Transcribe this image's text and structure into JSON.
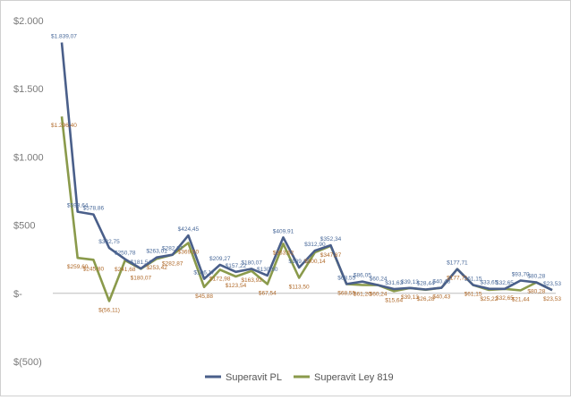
{
  "chart_data": {
    "type": "line",
    "title": "",
    "xlabel": "",
    "ylabel": "",
    "ylim": [
      -500,
      2000
    ],
    "yticks": [
      {
        "value": 2000,
        "label": "$2.000"
      },
      {
        "value": 1500,
        "label": "$1.500"
      },
      {
        "value": 1000,
        "label": "$1.000"
      },
      {
        "value": 500,
        "label": "$500"
      },
      {
        "value": 0,
        "label": "$-"
      },
      {
        "value": -500,
        "label": "$(500)"
      }
    ],
    "grid": false,
    "legend_position": "bottom",
    "series": [
      {
        "name": "Superavit PL",
        "color": "#4a5f8a",
        "values": [
          1839.07,
          598.64,
          578.86,
          332.75,
          250.78,
          181.54,
          263.01,
          282.87,
          424.45,
          106.17,
          209.27,
          157.22,
          180.07,
          130.6,
          409.91,
          189.15,
          312.9,
          352.34,
          68.55,
          86.05,
          60.24,
          31.63,
          39.13,
          28.44,
          40.43,
          177.71,
          61.15,
          33.65,
          32.65,
          93.7,
          80.28,
          23.53
        ],
        "labels": [
          "$1.839,07",
          "$598,64",
          "$578,86",
          "$332,75",
          "$250,78",
          "$181,54",
          "$263,01",
          "$282,87",
          "$424,45",
          "$106,17",
          "$209,27",
          "$157,22",
          "$180,07",
          "$130,60",
          "$409,91",
          "$189,15",
          "$312,90",
          "$352,34",
          "$68,55",
          "$86,05",
          "$60,24",
          "$31,63",
          "$39,13",
          "$28,44",
          "$40,43",
          "$177,71",
          "$61,15",
          "$33,65",
          "$32,65",
          "$93,70",
          "$80,28",
          "$23,53"
        ]
      },
      {
        "name": "Superavit Ley 819",
        "color": "#8a9a4b",
        "values": [
          1296.4,
          259.6,
          245.8,
          -56.11,
          241.68,
          180.07,
          253.42,
          282.87,
          369.5,
          45.88,
          172.98,
          123.54,
          163.92,
          67.54,
          363.62,
          113.5,
          300.14,
          347.87,
          68.55,
          61.2,
          60.24,
          15.64,
          39.13,
          26.28,
          40.43,
          177.71,
          61.15,
          25.22,
          32.65,
          21.44,
          80.28,
          23.53
        ],
        "labels": [
          "$1.296,40",
          "$259,60",
          "$245,80",
          "$(56,11)",
          "$241,68",
          "$180,07",
          "$253,42",
          "$282,87",
          "$369,50",
          "$45,88",
          "$172,98",
          "$123,54",
          "$163,92",
          "$67,54",
          "$363,62",
          "$113,50",
          "$300,14",
          "$347,87",
          "$68,55",
          "$61,20",
          "$60,24",
          "$15,64",
          "$39,13",
          "$26,28",
          "$40,43",
          "$177,71",
          "$61,15",
          "$25,22",
          "$32,65",
          "$21,44",
          "$80,28",
          "$23,53"
        ]
      }
    ]
  }
}
